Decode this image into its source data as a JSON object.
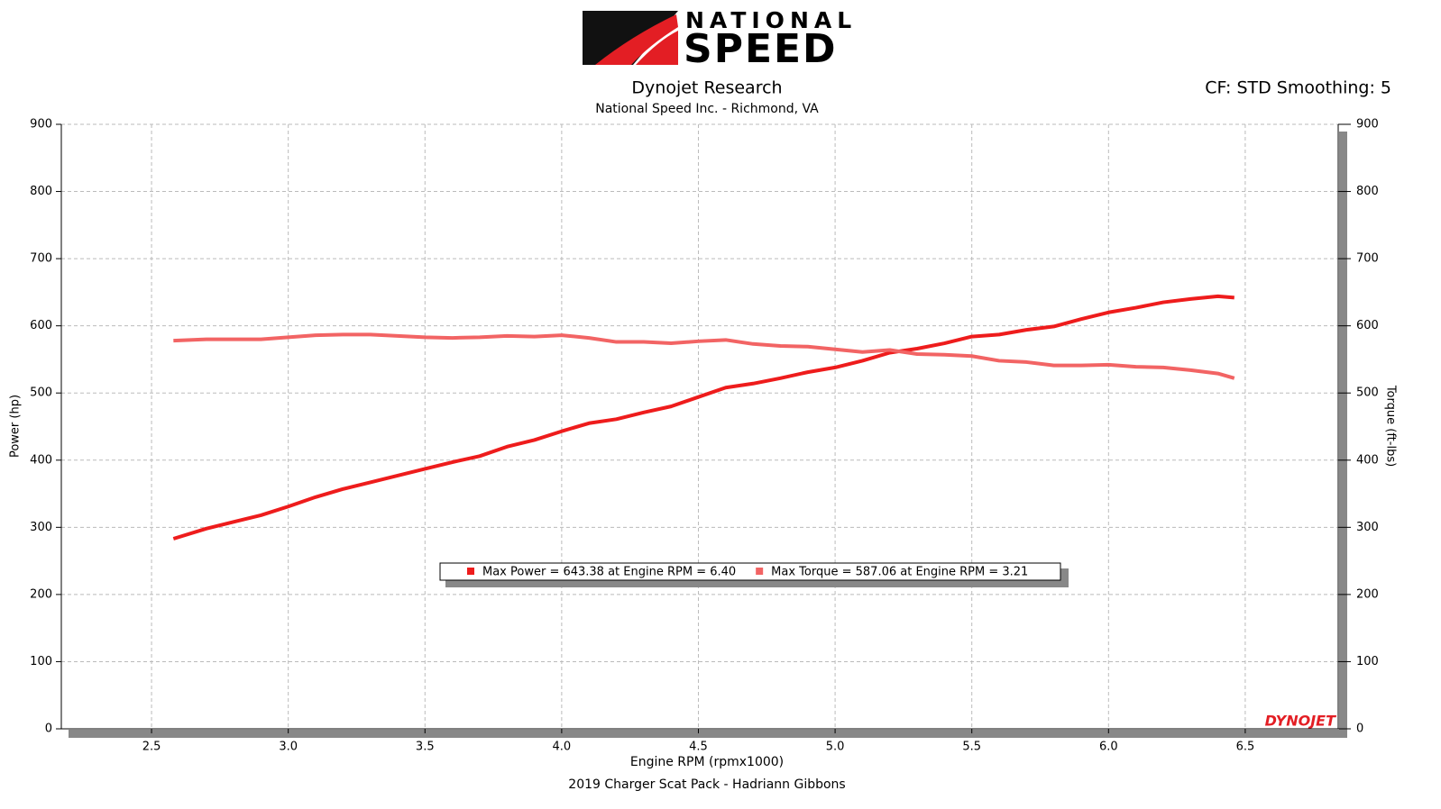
{
  "chart_data": {
    "type": "line",
    "logo": {
      "top": "NATIONAL",
      "bottom": "SPEED"
    },
    "title": "Dynojet Research",
    "subtitle": "National Speed Inc. - Richmond, VA",
    "settings_label": "CF: STD Smoothing: 5",
    "xlabel": "Engine RPM (rpmx1000)",
    "ylabel": "Power (hp)",
    "y2label": "Torque (ft-lbs)",
    "footer": "2019 Charger Scat Pack - Hadriann Gibbons",
    "watermark": "DYNOJET",
    "grid": true,
    "legend": "bottom center",
    "xlim": [
      2.17,
      6.84
    ],
    "xticks": [
      2.5,
      {
        "value": 3,
        "label": "3.0"
      },
      3.5,
      {
        "value": 4,
        "label": "4.0"
      },
      4.5,
      {
        "value": 5,
        "label": "5.0"
      },
      5.5,
      {
        "value": 6,
        "label": "6.0"
      },
      6.5
    ],
    "ylim": [
      0,
      900
    ],
    "yticks": [
      0,
      100,
      200,
      300,
      400,
      500,
      600,
      700,
      800,
      900
    ],
    "y2lim": [
      0,
      900
    ],
    "y2ticks": [
      0,
      100,
      200,
      300,
      400,
      500,
      600,
      700,
      800,
      900
    ],
    "x": [
      2.58,
      2.7,
      2.8,
      2.9,
      3.0,
      3.1,
      3.2,
      3.3,
      3.4,
      3.5,
      3.6,
      3.7,
      3.8,
      3.9,
      4.0,
      4.1,
      4.2,
      4.3,
      4.4,
      4.5,
      4.6,
      4.7,
      4.8,
      4.9,
      5.0,
      5.1,
      5.2,
      5.3,
      5.4,
      5.5,
      5.6,
      5.7,
      5.8,
      5.9,
      6.0,
      6.1,
      6.2,
      6.3,
      6.4,
      6.46
    ],
    "series": [
      {
        "name": "Max Power = 643.38 at Engine RPM = 6.40",
        "color": "#ee1c1c",
        "axis": "y",
        "values": [
          283,
          298,
          308,
          318,
          331,
          345,
          357,
          367,
          377,
          387,
          397,
          406,
          420,
          430,
          443,
          455,
          461,
          471,
          480,
          494,
          508,
          514,
          522,
          531,
          538,
          548,
          560,
          566,
          574,
          584,
          587,
          594,
          599,
          610,
          620,
          627,
          635,
          640,
          644,
          642
        ]
      },
      {
        "name": "Max Torque = 587.06 at Engine RPM = 3.21",
        "color": "#f26464",
        "axis": "y2",
        "values": [
          578,
          580,
          580,
          580,
          583,
          586,
          587,
          587,
          585,
          583,
          582,
          583,
          585,
          584,
          586,
          582,
          576,
          576,
          574,
          577,
          579,
          573,
          570,
          569,
          565,
          561,
          564,
          558,
          557,
          555,
          548,
          546,
          541,
          541,
          542,
          539,
          538,
          534,
          529,
          522
        ]
      }
    ]
  }
}
